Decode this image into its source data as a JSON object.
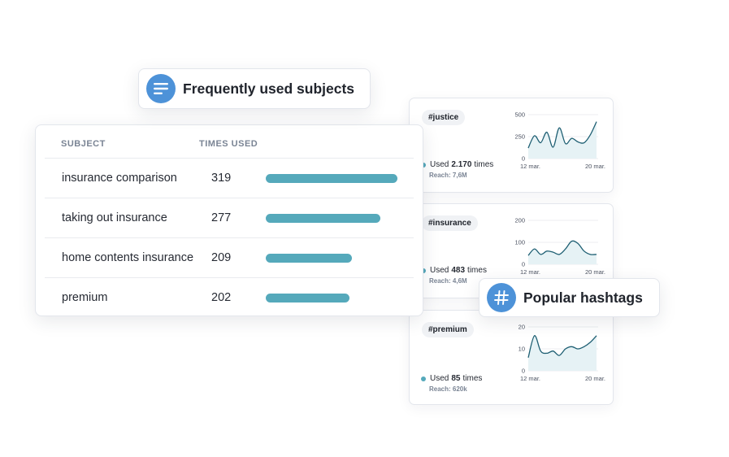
{
  "subjects_panel": {
    "title": "Frequently used subjects",
    "icon": "list-lines-icon",
    "accent": "#4d92d8",
    "columns": {
      "subject": "SUBJECT",
      "times_used": "TIMES USED"
    },
    "bar_color": "#55a9bb",
    "max_count": 319,
    "rows": [
      {
        "subject": "insurance comparison",
        "count": "319",
        "value": 319
      },
      {
        "subject": "taking out insurance",
        "count": "277",
        "value": 277
      },
      {
        "subject": "home contents insurance",
        "count": "209",
        "value": 209
      },
      {
        "subject": "premium",
        "count": "202",
        "value": 202
      }
    ]
  },
  "hashtags_panel": {
    "title": "Popular hashtags",
    "icon": "hashtag-icon",
    "cards": [
      {
        "tag": "#justice",
        "used_prefix": "Used",
        "used_value": "2.170",
        "used_suffix": "times",
        "reach": "Reach: 7,6M",
        "chart_data": {
          "type": "line",
          "x_ticks": [
            "12 mar.",
            "20 mar."
          ],
          "y_ticks": [
            "500",
            "250",
            "0"
          ],
          "ylim": [
            0,
            500
          ],
          "values": [
            120,
            260,
            180,
            300,
            130,
            350,
            170,
            230,
            190,
            180,
            270,
            420
          ]
        }
      },
      {
        "tag": "#insurance",
        "used_prefix": "Used",
        "used_value": "483",
        "used_suffix": "times",
        "reach": "Reach: 4,6M",
        "chart_data": {
          "type": "line",
          "x_ticks": [
            "12 mar.",
            "20 mar."
          ],
          "y_ticks": [
            "200",
            "100",
            "0"
          ],
          "ylim": [
            0,
            200
          ],
          "values": [
            40,
            70,
            45,
            60,
            55,
            45,
            70,
            105,
            95,
            60,
            45,
            45
          ]
        }
      },
      {
        "tag": "#premium",
        "used_prefix": "Used",
        "used_value": "85",
        "used_suffix": "times",
        "reach": "Reach: 620k",
        "chart_data": {
          "type": "line",
          "x_ticks": [
            "12 mar.",
            "20 mar."
          ],
          "y_ticks": [
            "20",
            "10",
            "0"
          ],
          "ylim": [
            0,
            20
          ],
          "values": [
            6,
            16,
            9,
            8,
            9,
            7,
            10,
            11,
            10,
            11,
            13,
            16
          ]
        }
      }
    ]
  }
}
